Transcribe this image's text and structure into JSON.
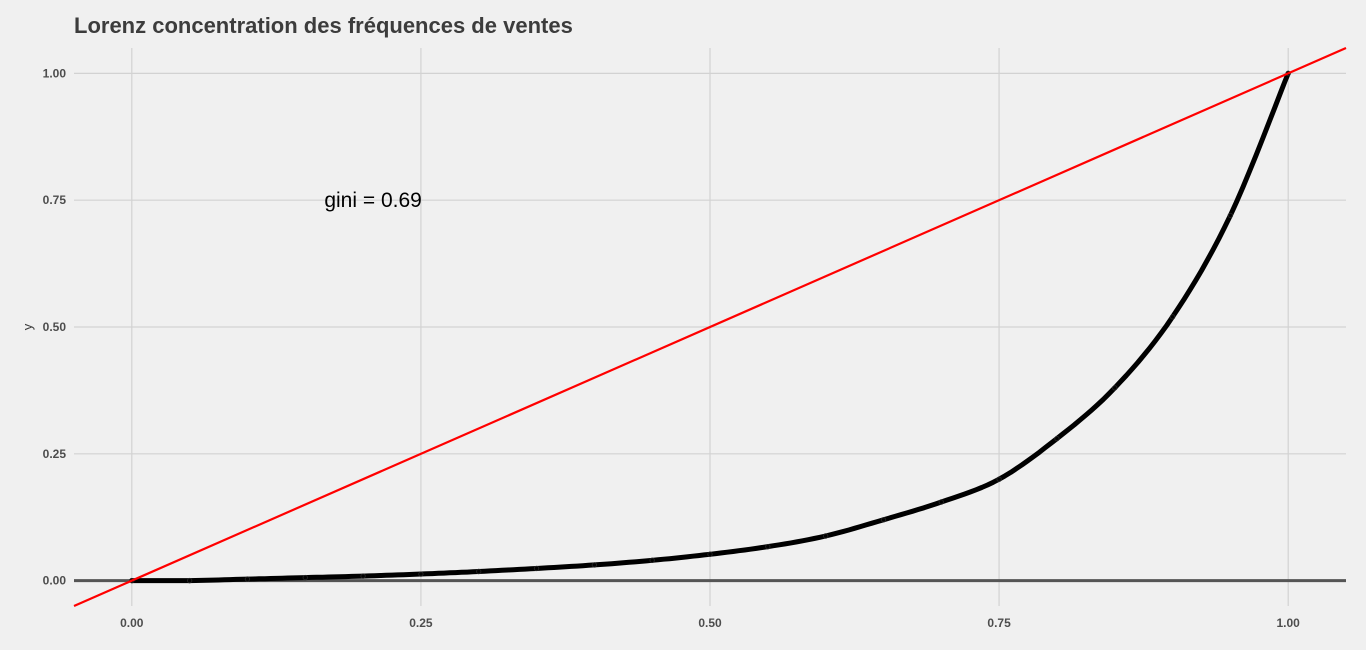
{
  "chart_data": {
    "type": "line",
    "title": "Lorenz concentration des fréquences de ventes",
    "xlabel": "",
    "ylabel": "y",
    "xlim": [
      -0.05,
      1.05
    ],
    "ylim": [
      -0.05,
      1.05
    ],
    "x_ticks": [
      0.0,
      0.25,
      0.5,
      0.75,
      1.0
    ],
    "x_tick_labels": [
      "0.00",
      "0.25",
      "0.50",
      "0.75",
      "1.00"
    ],
    "y_ticks": [
      0.0,
      0.25,
      0.5,
      0.75,
      1.0
    ],
    "y_tick_labels": [
      "0.00",
      "0.25",
      "0.50",
      "0.75",
      "1.00"
    ],
    "grid": true,
    "hline_y": 0,
    "series": [
      {
        "kind": "lorenz-curve",
        "color": "#000000",
        "x": [
          0.0,
          0.05,
          0.1,
          0.15,
          0.2,
          0.25,
          0.3,
          0.35,
          0.4,
          0.45,
          0.5,
          0.55,
          0.6,
          0.65,
          0.7,
          0.75,
          0.8,
          0.85,
          0.9,
          0.95,
          1.0
        ],
        "y": [
          0.0,
          0.0,
          0.003,
          0.006,
          0.009,
          0.013,
          0.018,
          0.024,
          0.031,
          0.04,
          0.052,
          0.067,
          0.088,
          0.12,
          0.155,
          0.2,
          0.28,
          0.38,
          0.52,
          0.72,
          1.0
        ]
      },
      {
        "kind": "equality-line",
        "color": "#ff0000",
        "x": [
          -0.05,
          1.05
        ],
        "y": [
          -0.05,
          1.05
        ]
      }
    ],
    "annotations": [
      {
        "text": "gini = 0.69",
        "x": 0.2,
        "y": 0.75
      }
    ]
  }
}
